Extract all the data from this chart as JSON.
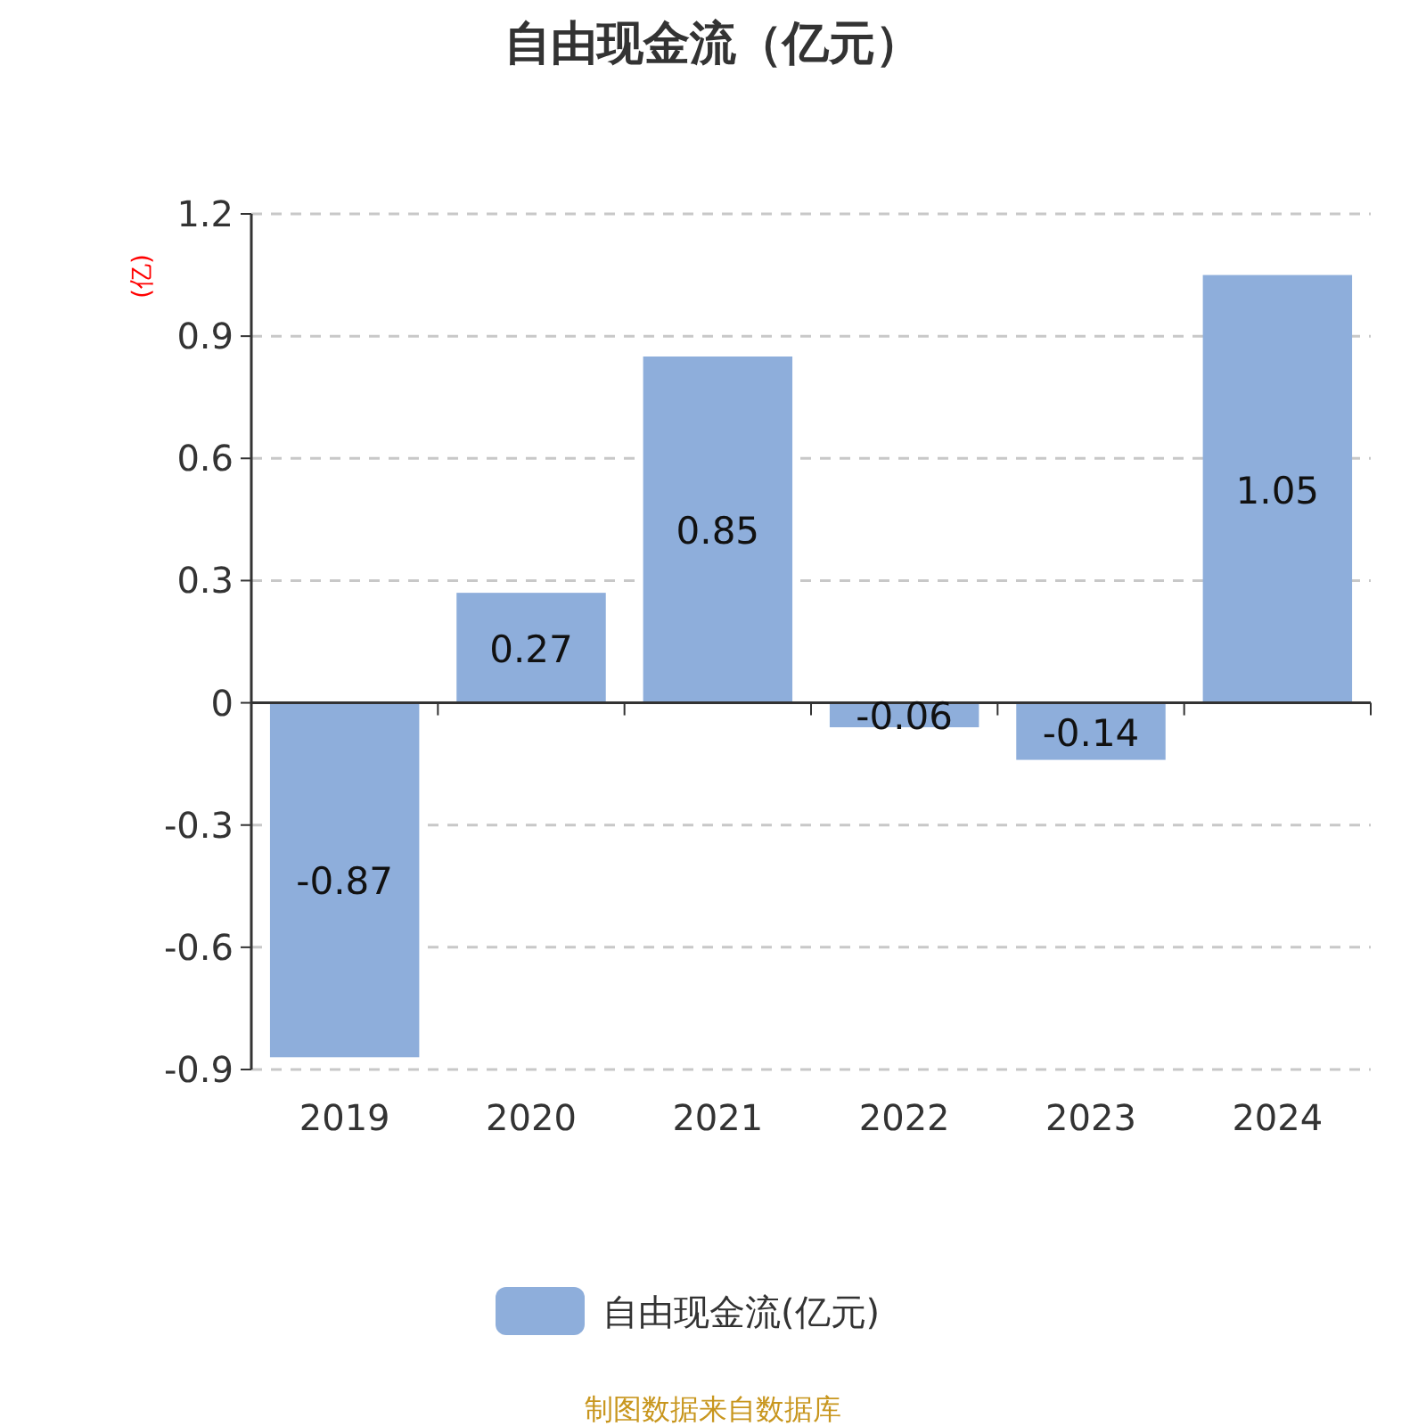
{
  "chart_data": {
    "type": "bar",
    "title": "自由现金流（亿元）",
    "ylabel": "(亿)",
    "categories": [
      "2019",
      "2020",
      "2021",
      "2022",
      "2023",
      "2024"
    ],
    "series": [
      {
        "name": "自由现金流(亿元)",
        "color": "#8eaedb",
        "values": [
          -0.87,
          0.27,
          0.85,
          -0.06,
          -0.14,
          1.05
        ]
      }
    ],
    "ylim": [
      -0.9,
      1.2
    ],
    "yticks": [
      -0.9,
      -0.6,
      -0.3,
      0,
      0.3,
      0.6,
      0.9,
      1.2
    ],
    "grid": "y",
    "legend": "bottom",
    "data_labels": true,
    "annotations": [
      "制图数据来自数据库"
    ]
  }
}
